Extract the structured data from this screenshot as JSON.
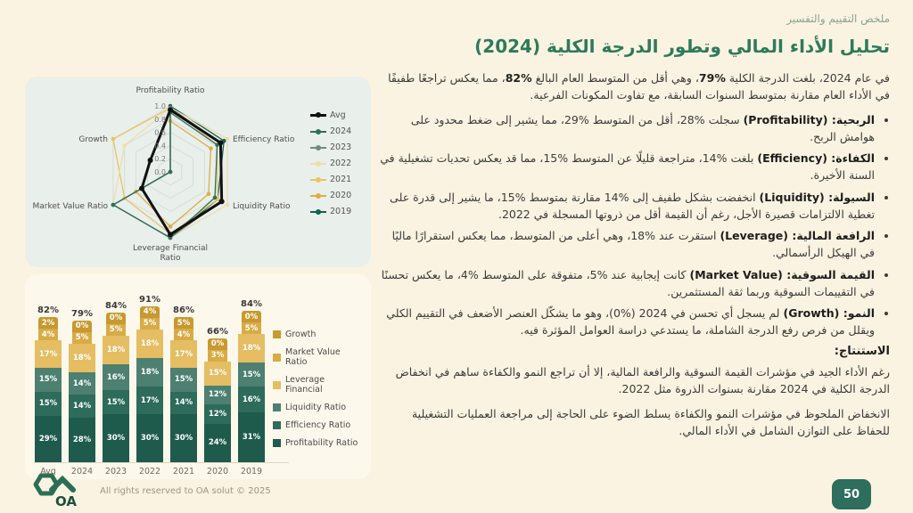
{
  "page": {
    "number": "50",
    "background": "#faf3e1",
    "accent_green": "#2e7a5b",
    "badge_green": "#2d6e5c"
  },
  "header": {
    "label": "ملخص التقييم والتفسير",
    "title": "تحليل الأداء المالي وتطور الدرجة الكلية (2024)"
  },
  "analysis": {
    "intro": {
      "pre": "في عام 2024، بلغت الدرجة الكلية ",
      "v1": "%79",
      "mid": "، وهي أقل من المتوسط العام البالغ ",
      "v2": "%82",
      "post": "، مما يعكس تراجعًا طفيفًا في الأداء العام مقارنة بمتوسط السنوات السابقة، مع تفاوت المكونات الفرعية."
    },
    "bullets": [
      {
        "term": "الربحية: (Profitability)",
        "text": "سجلت %28، أقل من المتوسط %29، مما يشير إلى ضغط محدود على هوامش الربح."
      },
      {
        "term": "الكفاءة: (Efficiency)",
        "text": "بلغت %14، متراجعة قليلًا عن المتوسط %15، مما قد يعكس تحديات تشغيلية في السنة الأخيرة."
      },
      {
        "term": "السيولة: (Liquidity)",
        "text": "انخفضت بشكل طفيف إلى %14 مقارنة بمتوسط %15، ما يشير إلى قدرة على تغطية الالتزامات قصيرة الأجل، رغم أن القيمة أقل من ذروتها المسجلة في 2022."
      },
      {
        "term": "الرافعة المالية: (Leverage)",
        "text": "استقرت عند %18، وهي أعلى من المتوسط، مما يعكس استقرارًا ماليًا في الهيكل الرأسمالي."
      },
      {
        "term": "القيمة السوقية: (Market Value)",
        "text": "كانت إيجابية عند %5، متفوقة على المتوسط %4، ما يعكس تحسنًا في التقييمات السوقية وربما ثقة المستثمرين."
      },
      {
        "term": "النمو: (Growth)",
        "text": "لم يسجل أي تحسن في 2024 (%0)، وهو ما يشكّل العنصر الأضعف في التقييم الكلي ويقلل من فرص رفع الدرجة الشاملة، ما يستدعي دراسة العوامل المؤثرة فيه."
      }
    ],
    "conclusion": {
      "heading": "الاستنتاج:",
      "p1": "رغم الأداء الجيد في مؤشرات القيمة السوقية والرافعة المالية، إلا أن تراجع النمو والكفاءة ساهم في انخفاض الدرجة الكلية في 2024 مقارنة بسنوات الذروة مثل 2022.",
      "p2": "الانخفاض الملحوظ في مؤشرات النمو والكفاءة يسلط الضوء على الحاجة إلى مراجعة العمليات التشغيلية للحفاظ على التوازن الشامل في الأداء المالي."
    }
  },
  "footer": {
    "logo_text": "OA",
    "copyright": "All rights reserved to OA solut © 2025"
  },
  "chart_data": [
    {
      "type": "radar",
      "axes": [
        "Profitability Ratio",
        "Efficiency Ratio",
        "Liquidity Ratio",
        "Leverage Financial Ratio",
        "Market Value Ratio",
        "Growth"
      ],
      "scale": {
        "min": 0.0,
        "max": 1.0,
        "ticks": [
          0.0,
          0.2,
          0.4,
          0.6,
          0.8,
          1.0
        ]
      },
      "grid": true,
      "legend_position": "right",
      "series": [
        {
          "name": "Avg",
          "color": "#111111",
          "width": 3,
          "values": [
            0.94,
            0.88,
            0.9,
            0.95,
            0.5,
            0.35
          ]
        },
        {
          "name": "2024",
          "color": "#2f6f5d",
          "width": 1.3,
          "values": [
            0.9,
            0.82,
            0.78,
            1.0,
            1.0,
            0.0
          ]
        },
        {
          "name": "2023",
          "color": "#74897e",
          "width": 1.3,
          "values": [
            0.97,
            0.88,
            0.89,
            1.0,
            1.0,
            0.0
          ]
        },
        {
          "name": "2022",
          "color": "#f0ddab",
          "width": 1.3,
          "values": [
            0.97,
            1.0,
            1.0,
            1.0,
            1.0,
            0.8
          ]
        },
        {
          "name": "2021",
          "color": "#e8c463",
          "width": 1.3,
          "values": [
            0.97,
            0.82,
            0.83,
            0.94,
            0.8,
            1.0
          ]
        },
        {
          "name": "2020",
          "color": "#dcae45",
          "width": 1.3,
          "values": [
            0.77,
            0.71,
            0.67,
            0.83,
            0.6,
            0.0
          ]
        },
        {
          "name": "2019",
          "color": "#15604e",
          "width": 1.3,
          "values": [
            1.0,
            0.94,
            0.83,
            1.0,
            1.0,
            0.0
          ]
        }
      ]
    },
    {
      "type": "bar",
      "stacked": true,
      "unit": "%",
      "categories": [
        "Avg",
        "2024",
        "2023",
        "2022",
        "2021",
        "2020",
        "2019"
      ],
      "totals": [
        "82%",
        "79%",
        "84%",
        "91%",
        "86%",
        "66%",
        "84%"
      ],
      "series": [
        {
          "name": "Profitability Ratio",
          "color": "#1e5b4d",
          "cap": false,
          "values": [
            29,
            28,
            30,
            30,
            30,
            24,
            31
          ]
        },
        {
          "name": "Efficiency Ratio",
          "color": "#2d6b5a",
          "cap": false,
          "values": [
            15,
            14,
            15,
            17,
            14,
            12,
            16
          ]
        },
        {
          "name": "Liquidity Ratio",
          "color": "#4d8070",
          "cap": false,
          "values": [
            15,
            14,
            16,
            18,
            15,
            12,
            15
          ]
        },
        {
          "name": "Leverage Financial",
          "color": "#e5bd62",
          "cap": false,
          "values": [
            17,
            18,
            18,
            18,
            17,
            15,
            18
          ]
        },
        {
          "name": "Market Value Ratio",
          "color": "#d9ab47",
          "cap": true,
          "values": [
            4,
            5,
            5,
            5,
            4,
            3,
            5
          ]
        },
        {
          "name": "Growth",
          "color": "#c8992f",
          "cap": true,
          "values": [
            2,
            0,
            0,
            4,
            5,
            0,
            0
          ]
        }
      ],
      "legend_position": "right"
    }
  ]
}
